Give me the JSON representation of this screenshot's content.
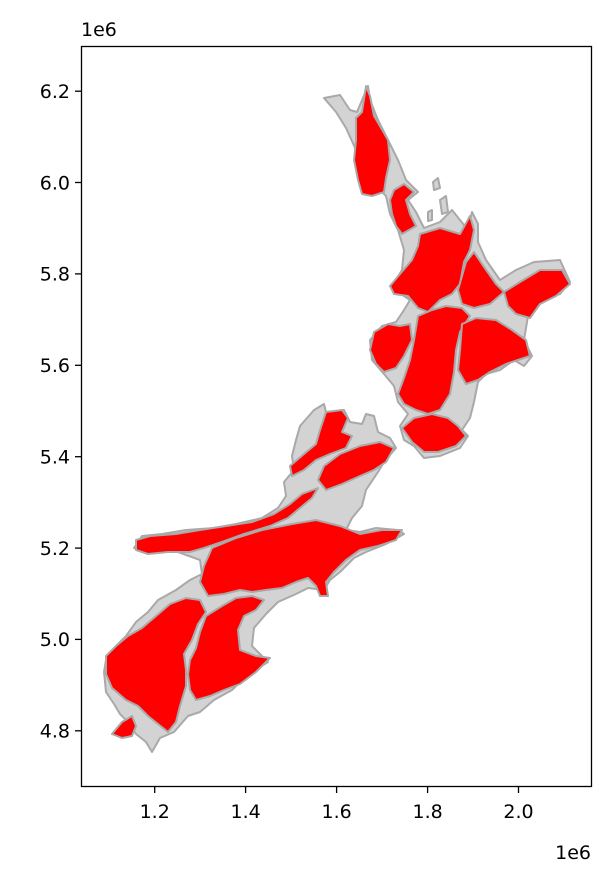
{
  "map": {
    "x_offset_label": "1e6",
    "y_offset_label": "1e6",
    "x_ticks": [
      "1.2",
      "1.4",
      "1.6",
      "1.8",
      "2.0"
    ],
    "y_ticks": [
      "6.2",
      "6.0",
      "5.8",
      "5.6",
      "5.4",
      "5.2",
      "5.0",
      "4.8"
    ],
    "colors": {
      "highlight": "#ff0000",
      "background_region": "#d3d3d3",
      "border": "#a9a9a9"
    }
  },
  "chart_data": {
    "type": "choropleth",
    "xlim": [
      1040000.0,
      2160000.0
    ],
    "ylim": [
      4680000.0,
      6300000.0
    ],
    "x_ticks": [
      1200000.0,
      1400000.0,
      1600000.0,
      1800000.0,
      2000000.0
    ],
    "y_ticks": [
      4800000.0,
      5000000.0,
      5200000.0,
      5400000.0,
      5600000.0,
      5800000.0,
      6000000.0,
      6200000.0
    ],
    "highlight_color": "#ff0000",
    "other_color": "#d3d3d3",
    "edge_color": "#a9a9a9",
    "grid": false
  }
}
